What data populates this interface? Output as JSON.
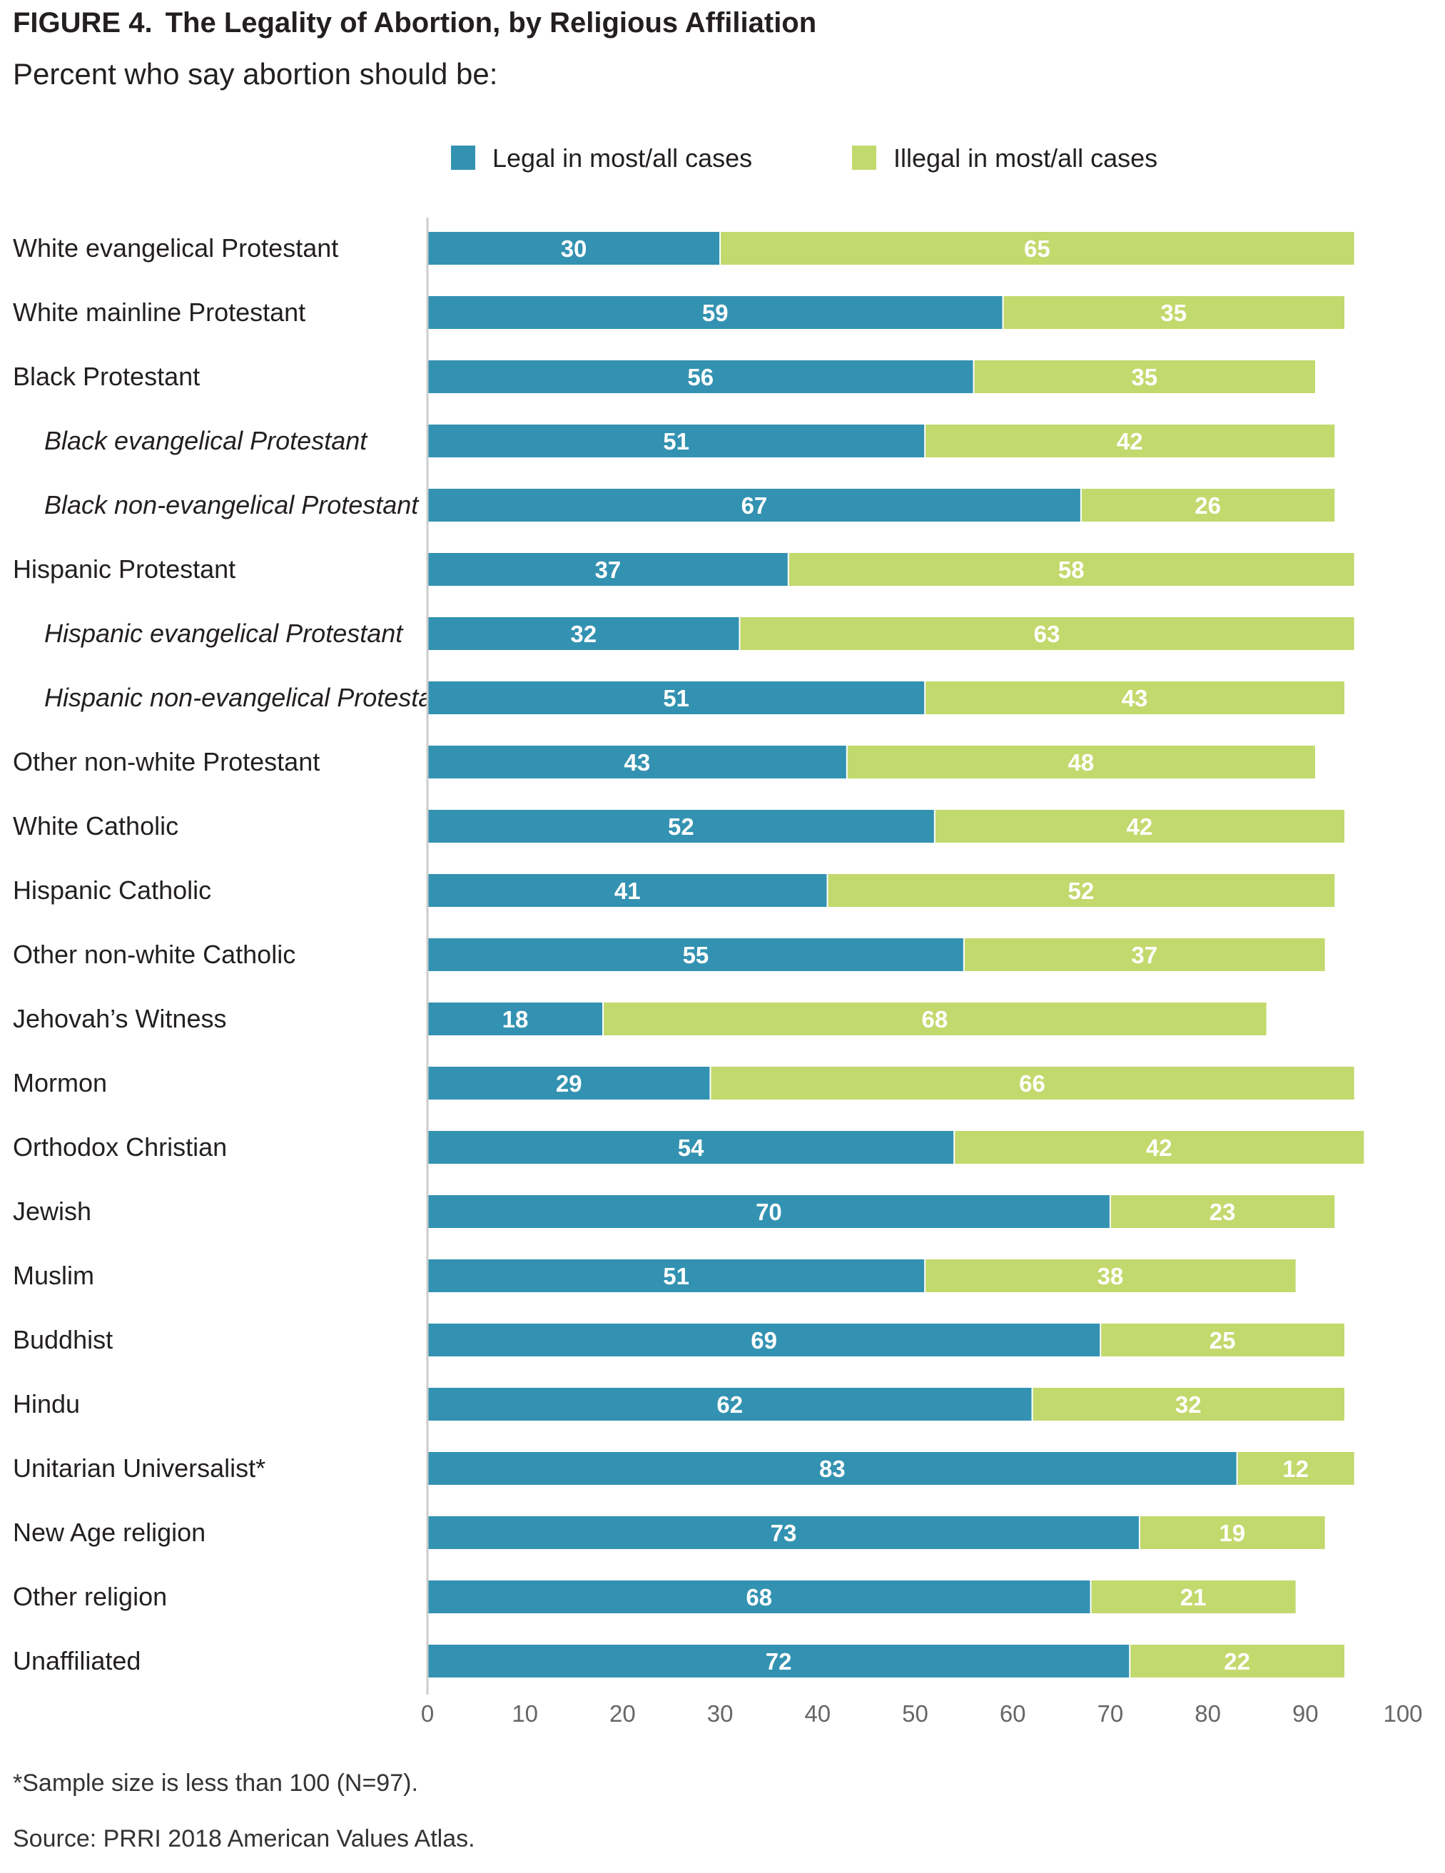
{
  "header": {
    "figure_number": "FIGURE 4.",
    "title": "The Legality of Abortion, by Religious Affiliation",
    "subtitle": "Percent who say abortion should be:"
  },
  "footer": {
    "note": "*Sample size is less than 100 (N=97).",
    "source": "Source: PRRI 2018 American Values Atlas."
  },
  "colors": {
    "legal": "#3392b1",
    "illegal": "#c2d96d",
    "axis": "#cccccc"
  },
  "chart_data": {
    "type": "bar",
    "orientation": "horizontal",
    "stacked": true,
    "title": "The Legality of Abortion, by Religious Affiliation",
    "subtitle": "Percent who say abortion should be:",
    "xlim": [
      0,
      100
    ],
    "x_ticks": [
      "0",
      "10",
      "20",
      "30",
      "40",
      "50",
      "60",
      "70",
      "80",
      "90",
      "100"
    ],
    "grid": false,
    "legend_position": "top-center",
    "categories": [
      "White evangelical Protestant",
      "White mainline Protestant",
      "Black Protestant",
      "Black evangelical Protestant",
      "Black non-evangelical Protestant",
      "Hispanic Protestant",
      "Hispanic evangelical Protestant",
      "Hispanic non-evangelical Protestant",
      "Other non-white Protestant",
      "White Catholic",
      "Hispanic Catholic",
      "Other non-white Catholic",
      "Jehovah’s Witness",
      "Mormon",
      "Orthodox Christian",
      "Jewish",
      "Muslim",
      "Buddhist",
      "Hindu",
      "Unitarian Universalist*",
      "New Age religion",
      "Other religion",
      "Unaffiliated"
    ],
    "italic_categories": [
      "Black evangelical Protestant",
      "Black non-evangelical Protestant",
      "Hispanic evangelical Protestant",
      "Hispanic non-evangelical Protestant"
    ],
    "series": [
      {
        "name": "Legal in most/all cases",
        "values": [
          30,
          59,
          56,
          51,
          67,
          37,
          32,
          51,
          43,
          52,
          41,
          55,
          18,
          29,
          54,
          70,
          51,
          69,
          62,
          83,
          73,
          68,
          72
        ]
      },
      {
        "name": "Illegal in most/all cases",
        "values": [
          65,
          35,
          35,
          42,
          26,
          58,
          63,
          43,
          48,
          42,
          52,
          37,
          68,
          66,
          42,
          23,
          38,
          25,
          32,
          12,
          19,
          21,
          22
        ]
      }
    ]
  }
}
